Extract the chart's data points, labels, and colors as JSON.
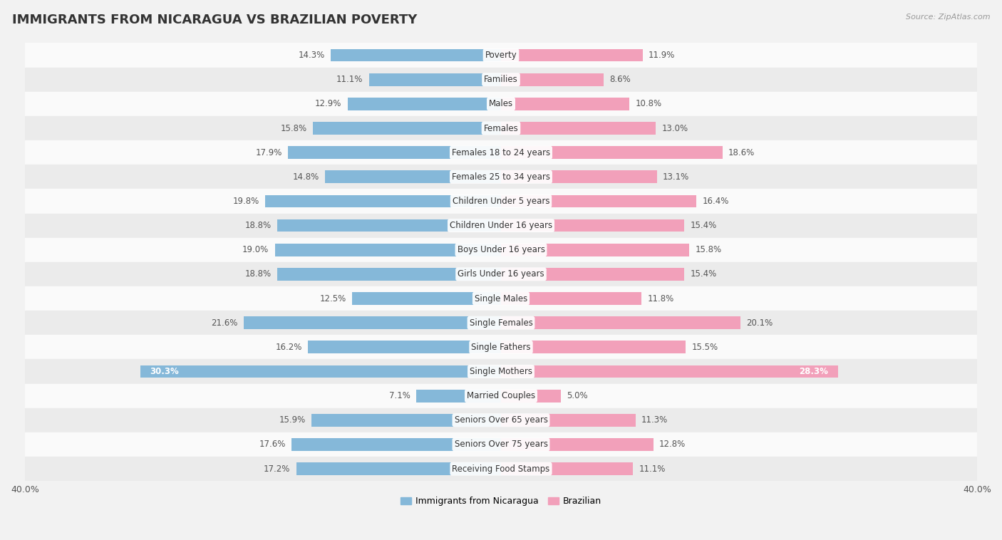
{
  "title": "IMMIGRANTS FROM NICARAGUA VS BRAZILIAN POVERTY",
  "source": "Source: ZipAtlas.com",
  "categories": [
    "Poverty",
    "Families",
    "Males",
    "Females",
    "Females 18 to 24 years",
    "Females 25 to 34 years",
    "Children Under 5 years",
    "Children Under 16 years",
    "Boys Under 16 years",
    "Girls Under 16 years",
    "Single Males",
    "Single Females",
    "Single Fathers",
    "Single Mothers",
    "Married Couples",
    "Seniors Over 65 years",
    "Seniors Over 75 years",
    "Receiving Food Stamps"
  ],
  "nicaragua_values": [
    14.3,
    11.1,
    12.9,
    15.8,
    17.9,
    14.8,
    19.8,
    18.8,
    19.0,
    18.8,
    12.5,
    21.6,
    16.2,
    30.3,
    7.1,
    15.9,
    17.6,
    17.2
  ],
  "brazilian_values": [
    11.9,
    8.6,
    10.8,
    13.0,
    18.6,
    13.1,
    16.4,
    15.4,
    15.8,
    15.4,
    11.8,
    20.1,
    15.5,
    28.3,
    5.0,
    11.3,
    12.8,
    11.1
  ],
  "nicaragua_color": "#85b8d9",
  "brazilian_color": "#f2a0ba",
  "background_color": "#f2f2f2",
  "row_light": "#fafafa",
  "row_dark": "#ebebeb",
  "xlim": 40.0,
  "bar_height": 0.52,
  "legend_labels": [
    "Immigrants from Nicaragua",
    "Brazilian"
  ],
  "title_fontsize": 13,
  "label_fontsize": 8.5,
  "value_fontsize": 8.5,
  "axis_label_fontsize": 9,
  "single_mothers_nic_label_color": "white",
  "single_mothers_bra_label_color": "white"
}
